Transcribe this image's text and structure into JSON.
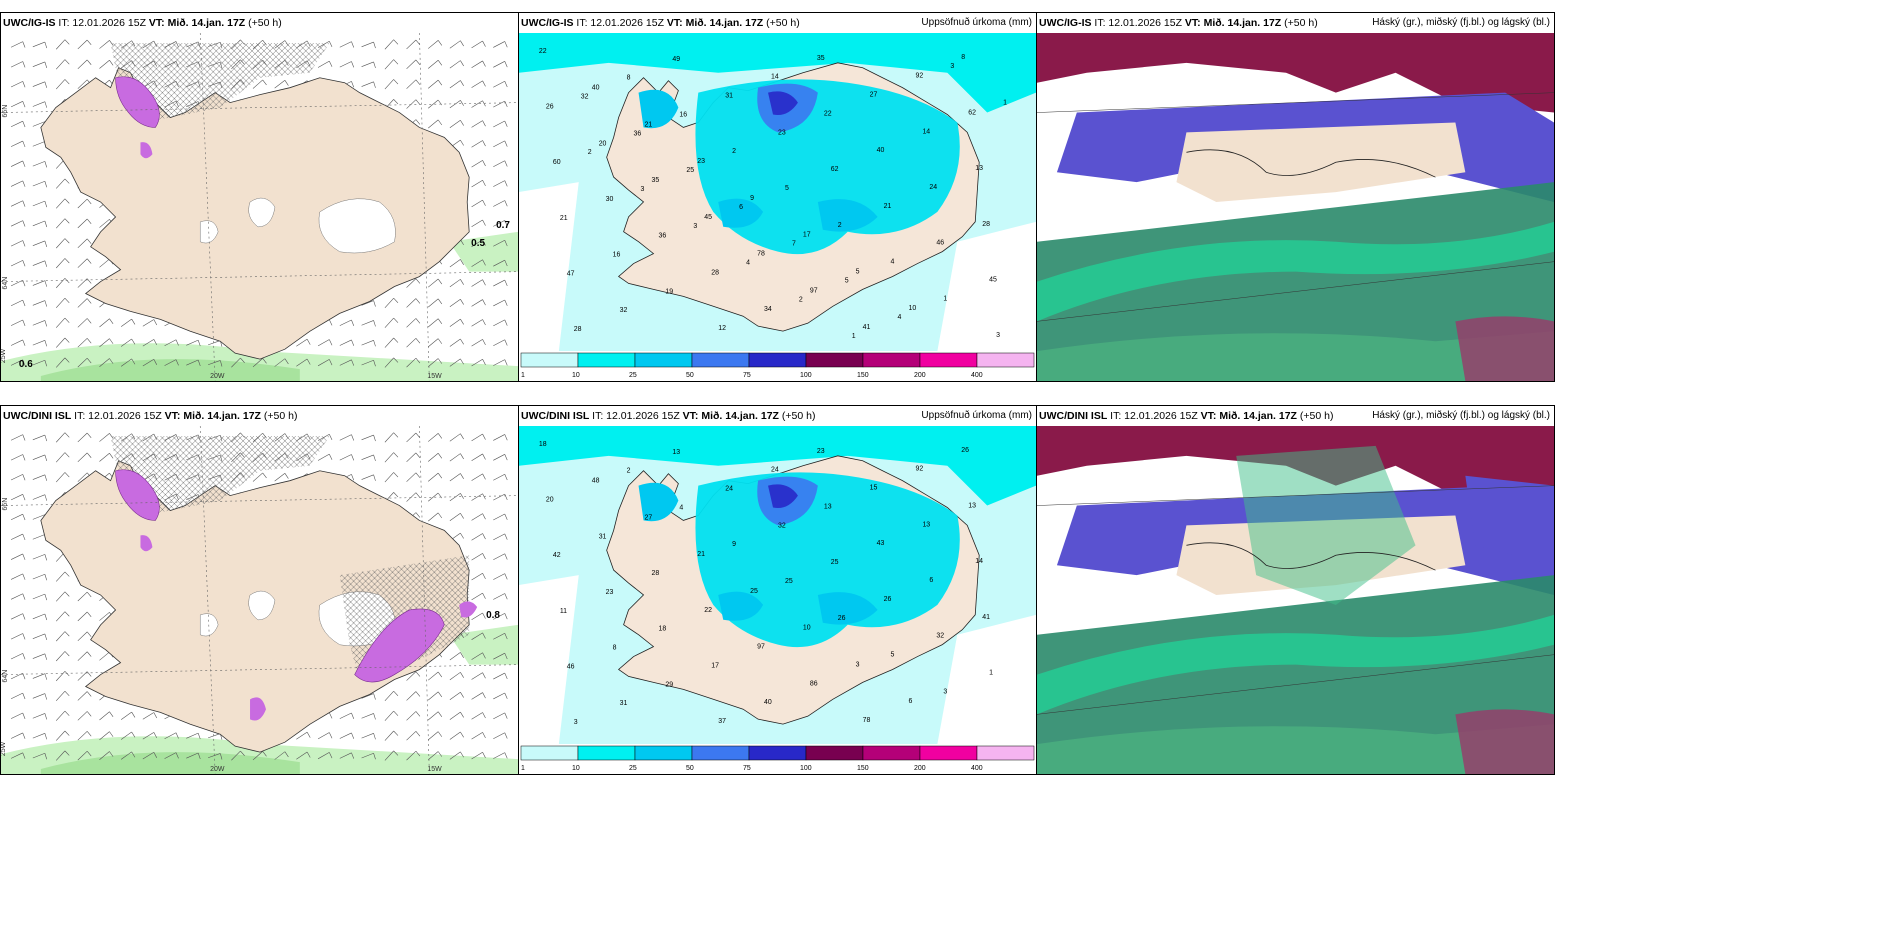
{
  "panels": [
    {
      "model": "UWC/IG-IS",
      "it": "IT: 12.01.2026 15Z",
      "vt": "VT: Mið. 14.jan. 17Z",
      "lead": "(+50 h)",
      "right": "",
      "kind": "wind"
    },
    {
      "model": "UWC/IG-IS",
      "it": "IT: 12.01.2026 15Z",
      "vt": "VT: Mið. 14.jan. 17Z",
      "lead": "(+50 h)",
      "right": "Uppsöfnuð úrkoma (mm)",
      "kind": "precip"
    },
    {
      "model": "UWC/IG-IS",
      "it": "IT: 12.01.2026 15Z",
      "vt": "VT: Mið. 14.jan. 17Z",
      "lead": "(+50 h)",
      "right": "Háský (gr.), miðský (fj.bl.) og lágský (bl.)",
      "kind": "cloud"
    },
    {
      "model": "UWC/DINI ISL",
      "it": "IT: 12.01.2026 15Z",
      "vt": "VT: Mið. 14.jan. 17Z",
      "lead": "(+50 h)",
      "right": "",
      "kind": "wind"
    },
    {
      "model": "UWC/DINI ISL",
      "it": "IT: 12.01.2026 15Z",
      "vt": "VT: Mið. 14.jan. 17Z",
      "lead": "(+50 h)",
      "right": "Uppsöfnuð úrkoma (mm)",
      "kind": "precip"
    },
    {
      "model": "UWC/DINI ISL",
      "it": "IT: 12.01.2026 15Z",
      "vt": "VT: Mið. 14.jan. 17Z",
      "lead": "(+50 h)",
      "right": "Háský (gr.), miðský (fj.bl.) og lágský (bl.)",
      "kind": "cloud"
    }
  ],
  "colorbar": {
    "ticks": [
      "1",
      "10",
      "25",
      "50",
      "75",
      "100",
      "150",
      "200",
      "400"
    ],
    "colors": [
      "#c8fafa",
      "#00f0f0",
      "#00c8f0",
      "#3c78f0",
      "#2828c8",
      "#780050",
      "#b40078",
      "#f000a0",
      "#f5b4f0"
    ]
  },
  "wind_labels": {
    "top": [
      "0.6",
      "0.5",
      "0.7"
    ],
    "bottom": [
      "0.8"
    ],
    "lat_lon": [
      "66N",
      "64N",
      "25W",
      "20W",
      "15W"
    ]
  },
  "precip_values_top": [
    "22",
    "40",
    "21",
    "23",
    "9",
    "17",
    "5",
    "10",
    "8",
    "26",
    "20",
    "35",
    "45",
    "78",
    "97",
    "41",
    "92",
    "62",
    "60",
    "30",
    "36",
    "28",
    "34",
    "35",
    "27",
    "14",
    "13",
    "21",
    "16",
    "19",
    "12",
    "14",
    "22",
    "40",
    "24",
    "28",
    "47",
    "32",
    "49",
    "31",
    "23",
    "62",
    "21",
    "46",
    "45",
    "28",
    "8",
    "16",
    "2",
    "5",
    "2",
    "4",
    "1",
    "3",
    "32",
    "36",
    "25",
    "6",
    "7",
    "5",
    "4",
    "3",
    "1",
    "2",
    "3",
    "3",
    "4",
    "2",
    "1"
  ],
  "precip_values_bottom": [
    "18",
    "48",
    "27",
    "21",
    "25",
    "10",
    "3",
    "6",
    "26",
    "20",
    "31",
    "28",
    "22",
    "97",
    "86",
    "78",
    "92",
    "13",
    "42",
    "23",
    "18",
    "17",
    "40",
    "23",
    "15",
    "13",
    "14",
    "11",
    "8",
    "29",
    "37",
    "24",
    "13",
    "43",
    "6",
    "41",
    "46",
    "31",
    "13",
    "24",
    "32",
    "25",
    "26",
    "32",
    "1",
    "3",
    "2",
    "4",
    "9",
    "25",
    "26",
    "5",
    "3"
  ]
}
